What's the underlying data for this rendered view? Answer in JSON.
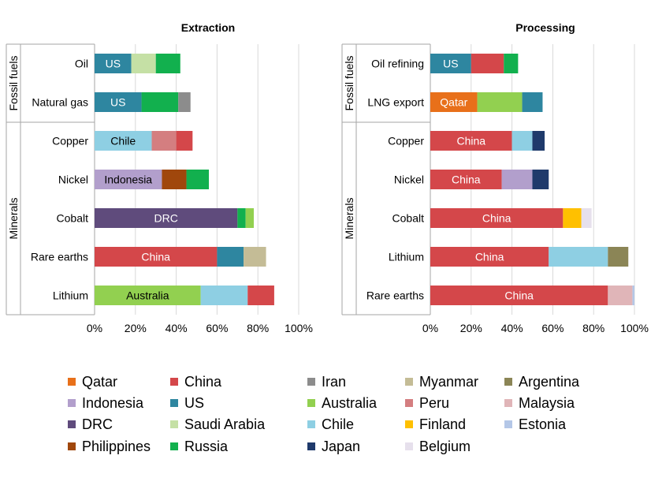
{
  "chart_data": {
    "type": "bar",
    "orientation": "horizontal",
    "stacked": true,
    "xlim": [
      0,
      100
    ],
    "x_ticks": [
      "0%",
      "20%",
      "40%",
      "60%",
      "80%",
      "100%"
    ],
    "grid": "vertical",
    "legend_position": "bottom",
    "colors": {
      "Qatar": "#E8701A",
      "China": "#D4474A",
      "Iran": "#8C8C8C",
      "Myanmar": "#C4BC96",
      "Argentina": "#8B8556",
      "Indonesia": "#B29FCC",
      "US": "#2E86A0",
      "Australia": "#92D050",
      "Peru": "#D47E80",
      "Malaysia": "#E0B5B8",
      "DRC": "#5F4B7C",
      "Saudi Arabia": "#C5E0A5",
      "Chile": "#8ECFE3",
      "Finland": "#FFC000",
      "Estonia": "#B4C7E7",
      "Philippines": "#A0470C",
      "Russia": "#12B04E",
      "Japan": "#1F3A6B",
      "Belgium": "#E6E0EC"
    },
    "legend": [
      "Qatar",
      "China",
      "Iran",
      "Myanmar",
      "Argentina",
      "Indonesia",
      "US",
      "Australia",
      "Peru",
      "Malaysia",
      "DRC",
      "Saudi Arabia",
      "Chile",
      "Finland",
      "Estonia",
      "Philippines",
      "Russia",
      "Japan",
      "Belgium"
    ],
    "panels": [
      {
        "title": "Extraction",
        "groups": [
          {
            "label": "Fossil fuels",
            "categories": [
              "Oil",
              "Natural gas"
            ]
          },
          {
            "label": "Minerals",
            "categories": [
              "Copper",
              "Nickel",
              "Cobalt",
              "Rare earths",
              "Lithium"
            ]
          }
        ],
        "bars": [
          {
            "category": "Oil",
            "segments": [
              {
                "country": "US",
                "value": 18,
                "label": "US"
              },
              {
                "country": "Saudi Arabia",
                "value": 12
              },
              {
                "country": "Russia",
                "value": 12
              }
            ]
          },
          {
            "category": "Natural gas",
            "segments": [
              {
                "country": "US",
                "value": 23,
                "label": "US"
              },
              {
                "country": "Russia",
                "value": 18
              },
              {
                "country": "Iran",
                "value": 6
              }
            ]
          },
          {
            "category": "Copper",
            "segments": [
              {
                "country": "Chile",
                "value": 28,
                "label": "Chile"
              },
              {
                "country": "Peru",
                "value": 12
              },
              {
                "country": "China",
                "value": 8
              }
            ]
          },
          {
            "category": "Nickel",
            "segments": [
              {
                "country": "Indonesia",
                "value": 33,
                "label": "Indonesia"
              },
              {
                "country": "Philippines",
                "value": 12
              },
              {
                "country": "Russia",
                "value": 11
              }
            ]
          },
          {
            "category": "Cobalt",
            "segments": [
              {
                "country": "DRC",
                "value": 70,
                "label": "DRC"
              },
              {
                "country": "Russia",
                "value": 4
              },
              {
                "country": "Australia",
                "value": 4
              }
            ]
          },
          {
            "category": "Rare earths",
            "segments": [
              {
                "country": "China",
                "value": 60,
                "label": "China"
              },
              {
                "country": "US",
                "value": 13
              },
              {
                "country": "Myanmar",
                "value": 11
              }
            ]
          },
          {
            "category": "Lithium",
            "segments": [
              {
                "country": "Australia",
                "value": 52,
                "label": "Australia"
              },
              {
                "country": "Chile",
                "value": 23
              },
              {
                "country": "China",
                "value": 13
              }
            ]
          }
        ]
      },
      {
        "title": "Processing",
        "groups": [
          {
            "label": "Fossil fuels",
            "categories": [
              "Oil refining",
              "LNG export"
            ]
          },
          {
            "label": "Minerals",
            "categories": [
              "Copper",
              "Nickel",
              "Cobalt",
              "Lithium",
              "Rare earths"
            ]
          }
        ],
        "bars": [
          {
            "category": "Oil refining",
            "segments": [
              {
                "country": "US",
                "value": 20,
                "label": "US"
              },
              {
                "country": "China",
                "value": 16
              },
              {
                "country": "Russia",
                "value": 7
              }
            ]
          },
          {
            "category": "LNG export",
            "segments": [
              {
                "country": "Qatar",
                "value": 23,
                "label": "Qatar"
              },
              {
                "country": "Australia",
                "value": 22
              },
              {
                "country": "US",
                "value": 10
              }
            ]
          },
          {
            "category": "Copper",
            "segments": [
              {
                "country": "China",
                "value": 40,
                "label": "China"
              },
              {
                "country": "Chile",
                "value": 10
              },
              {
                "country": "Japan",
                "value": 6
              }
            ]
          },
          {
            "category": "Nickel",
            "segments": [
              {
                "country": "China",
                "value": 35,
                "label": "China"
              },
              {
                "country": "Indonesia",
                "value": 15
              },
              {
                "country": "Japan",
                "value": 8
              }
            ]
          },
          {
            "category": "Cobalt",
            "segments": [
              {
                "country": "China",
                "value": 65,
                "label": "China"
              },
              {
                "country": "Finland",
                "value": 9
              },
              {
                "country": "Belgium",
                "value": 5
              }
            ]
          },
          {
            "category": "Lithium",
            "segments": [
              {
                "country": "China",
                "value": 58,
                "label": "China"
              },
              {
                "country": "Chile",
                "value": 29
              },
              {
                "country": "Argentina",
                "value": 10
              }
            ]
          },
          {
            "category": "Rare earths",
            "segments": [
              {
                "country": "China",
                "value": 87,
                "label": "China"
              },
              {
                "country": "Malaysia",
                "value": 12
              },
              {
                "country": "Estonia",
                "value": 1
              }
            ]
          }
        ]
      }
    ]
  }
}
